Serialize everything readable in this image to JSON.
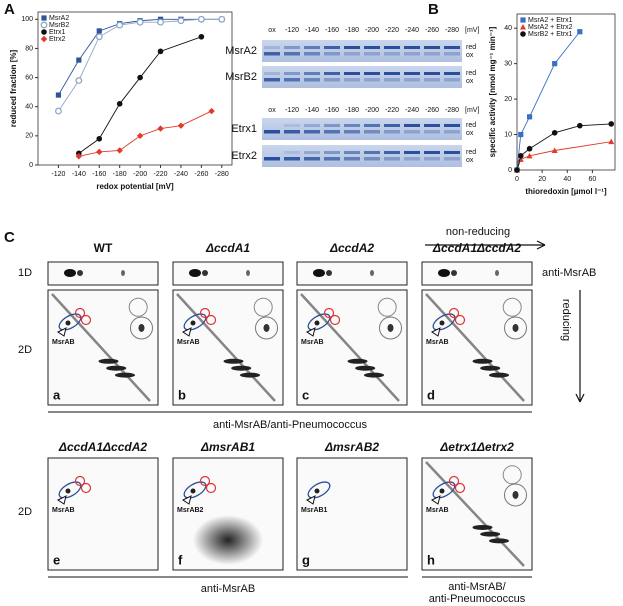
{
  "panels": {
    "a": "A",
    "b": "B",
    "c": "C"
  },
  "chart_data": [
    {
      "type": "line",
      "x_label": "redox potential [mV]",
      "y_label": "reduced fraction [%]",
      "xlim": [
        -100,
        -290
      ],
      "ylim": [
        0,
        105
      ],
      "xticks": [
        -120,
        -140,
        -160,
        -180,
        -200,
        -220,
        -240,
        -260,
        -280
      ],
      "yticks": [
        0,
        20,
        40,
        60,
        80,
        100
      ],
      "legend": "upper left",
      "series": [
        {
          "name": "MsrA2",
          "color": "#2f5597",
          "marker": "square",
          "x": [
            -120,
            -140,
            -160,
            -180,
            -200,
            -220,
            -240,
            -260,
            -280
          ],
          "values": [
            48,
            72,
            92,
            97,
            99,
            100,
            100,
            100,
            100
          ]
        },
        {
          "name": "MsrB2",
          "color": "#8fa8c8",
          "marker": "circle-open",
          "x": [
            -120,
            -140,
            -160,
            -180,
            -200,
            -220,
            -240,
            -260,
            -280
          ],
          "values": [
            37,
            58,
            88,
            96,
            98,
            98,
            99,
            100,
            100
          ]
        },
        {
          "name": "Etrx1",
          "color": "#111111",
          "marker": "circle",
          "x": [
            -140,
            -160,
            -180,
            -200,
            -220,
            -260
          ],
          "values": [
            8,
            18,
            42,
            60,
            78,
            88
          ]
        },
        {
          "name": "Etrx2",
          "color": "#e03a2a",
          "marker": "diamond",
          "x": [
            -140,
            -160,
            -180,
            -200,
            -220,
            -240,
            -270
          ],
          "values": [
            6,
            9,
            10,
            20,
            25,
            27,
            37
          ]
        }
      ]
    },
    {
      "type": "line",
      "x_label": "thioredoxin [µmol l⁻¹]",
      "y_label": "specific activity [nmol mg⁻¹ min⁻¹]",
      "xlim": [
        0,
        78
      ],
      "ylim": [
        0,
        44
      ],
      "xticks": [
        0,
        20,
        40,
        60
      ],
      "yticks": [
        0,
        10,
        20,
        30,
        40
      ],
      "legend": "upper left",
      "series": [
        {
          "name": "MsrA2 + Etrx1",
          "color": "#3a6fc4",
          "marker": "square",
          "x": [
            0,
            3,
            10,
            30,
            50
          ],
          "values": [
            0,
            10,
            15,
            30,
            39
          ]
        },
        {
          "name": "MsrA2 + Etrx2",
          "color": "#e03a2a",
          "marker": "triangle",
          "x": [
            0,
            3,
            10,
            30,
            75
          ],
          "values": [
            0,
            3,
            4,
            5.5,
            8
          ]
        },
        {
          "name": "MsrB2 + Etrx1",
          "color": "#111111",
          "marker": "circle",
          "x": [
            0,
            3,
            10,
            30,
            50,
            75
          ],
          "values": [
            0,
            4,
            6,
            10.5,
            12.5,
            13
          ]
        }
      ]
    }
  ],
  "gel": {
    "lanes": [
      "ox",
      "-120",
      "-140",
      "-160",
      "-180",
      "-200",
      "-220",
      "-240",
      "-260",
      "-280"
    ],
    "unit": "[mV]",
    "rows": [
      {
        "label": "MsrA2",
        "states": [
          "red",
          "ox"
        ]
      },
      {
        "label": "MsrB2",
        "states": [
          "red",
          "ox"
        ]
      },
      {
        "label": "Etrx1",
        "states": [
          "red",
          "ox"
        ]
      },
      {
        "label": "Etrx2",
        "states": [
          "red",
          "ox"
        ]
      }
    ]
  },
  "blots": {
    "row_1d": "1D",
    "row_2d": "2D",
    "antibody_1d": "anti-MsrAB",
    "nonreducing": "non-reducing",
    "reducing": "reducing",
    "top_strains": [
      "WT",
      "ΔccdA1",
      "ΔccdA2",
      "ΔccdA1ΔccdA2"
    ],
    "top_panels": [
      {
        "letter": "a",
        "spot": "MsrAB"
      },
      {
        "letter": "b",
        "spot": "MsrAB"
      },
      {
        "letter": "c",
        "spot": "MsrAB"
      },
      {
        "letter": "d",
        "spot": "MsrAB"
      }
    ],
    "antibody_top": "anti-MsrAB/anti-Pneumococcus",
    "bottom_strains": [
      "ΔccdA1ΔccdA2",
      "ΔmsrAB1",
      "ΔmsrAB2",
      "Δetrx1Δetrx2"
    ],
    "bottom_panels": [
      {
        "letter": "e",
        "spot": "MsrAB"
      },
      {
        "letter": "f",
        "spot": "MsrAB2"
      },
      {
        "letter": "g",
        "spot": "MsrAB1"
      },
      {
        "letter": "h",
        "spot": "MsrAB"
      }
    ],
    "antibody_bottom_left": "anti-MsrAB",
    "antibody_bottom_right": [
      "anti-MsrAB/",
      "anti-Pneumococcus"
    ]
  }
}
